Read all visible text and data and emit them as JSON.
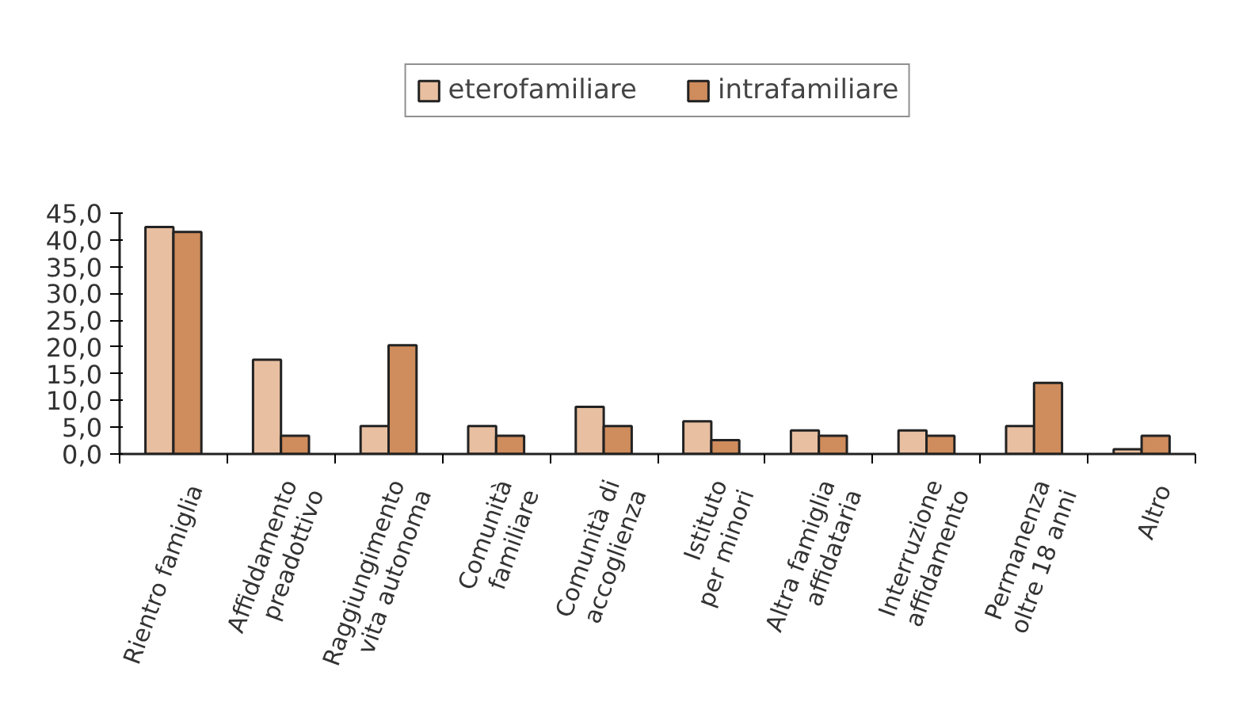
{
  "chart_data": {
    "type": "bar",
    "categories": [
      "Rientro famiglia",
      "Affiddamento\npreadottivo",
      "Raggiungimento\nvita autonoma",
      "Comunità\nfamiliare",
      "Comunità di\naccoglienza",
      "Istituto\nper minori",
      "Altra famiglia\naffidataria",
      "Interruzione\naffidamento",
      "Permanenza\noltre 18 anni",
      "Altro"
    ],
    "series": [
      {
        "name": "eterofamiliare",
        "color": "#e8bfa0",
        "values": [
          42.4,
          17.6,
          5.2,
          5.2,
          8.8,
          6.1,
          4.4,
          4.4,
          5.2,
          0.9
        ]
      },
      {
        "name": "intrafamiliare",
        "color": "#cf8c5c",
        "values": [
          41.5,
          3.4,
          20.3,
          3.4,
          5.2,
          2.6,
          3.4,
          3.4,
          13.3,
          3.4
        ]
      }
    ],
    "ylim": [
      0,
      45
    ],
    "yticks": [
      {
        "value": 0,
        "label": "0,0"
      },
      {
        "value": 5,
        "label": "5,0"
      },
      {
        "value": 10,
        "label": "10,0"
      },
      {
        "value": 15,
        "label": "15,0"
      },
      {
        "value": 20,
        "label": "20,0"
      },
      {
        "value": 25,
        "label": "25,0"
      },
      {
        "value": 30,
        "label": "30,0"
      },
      {
        "value": 35,
        "label": "35,0"
      },
      {
        "value": 40,
        "label": "40,0"
      },
      {
        "value": 45,
        "label": "45,0"
      }
    ],
    "grid": false,
    "legend": "top"
  }
}
